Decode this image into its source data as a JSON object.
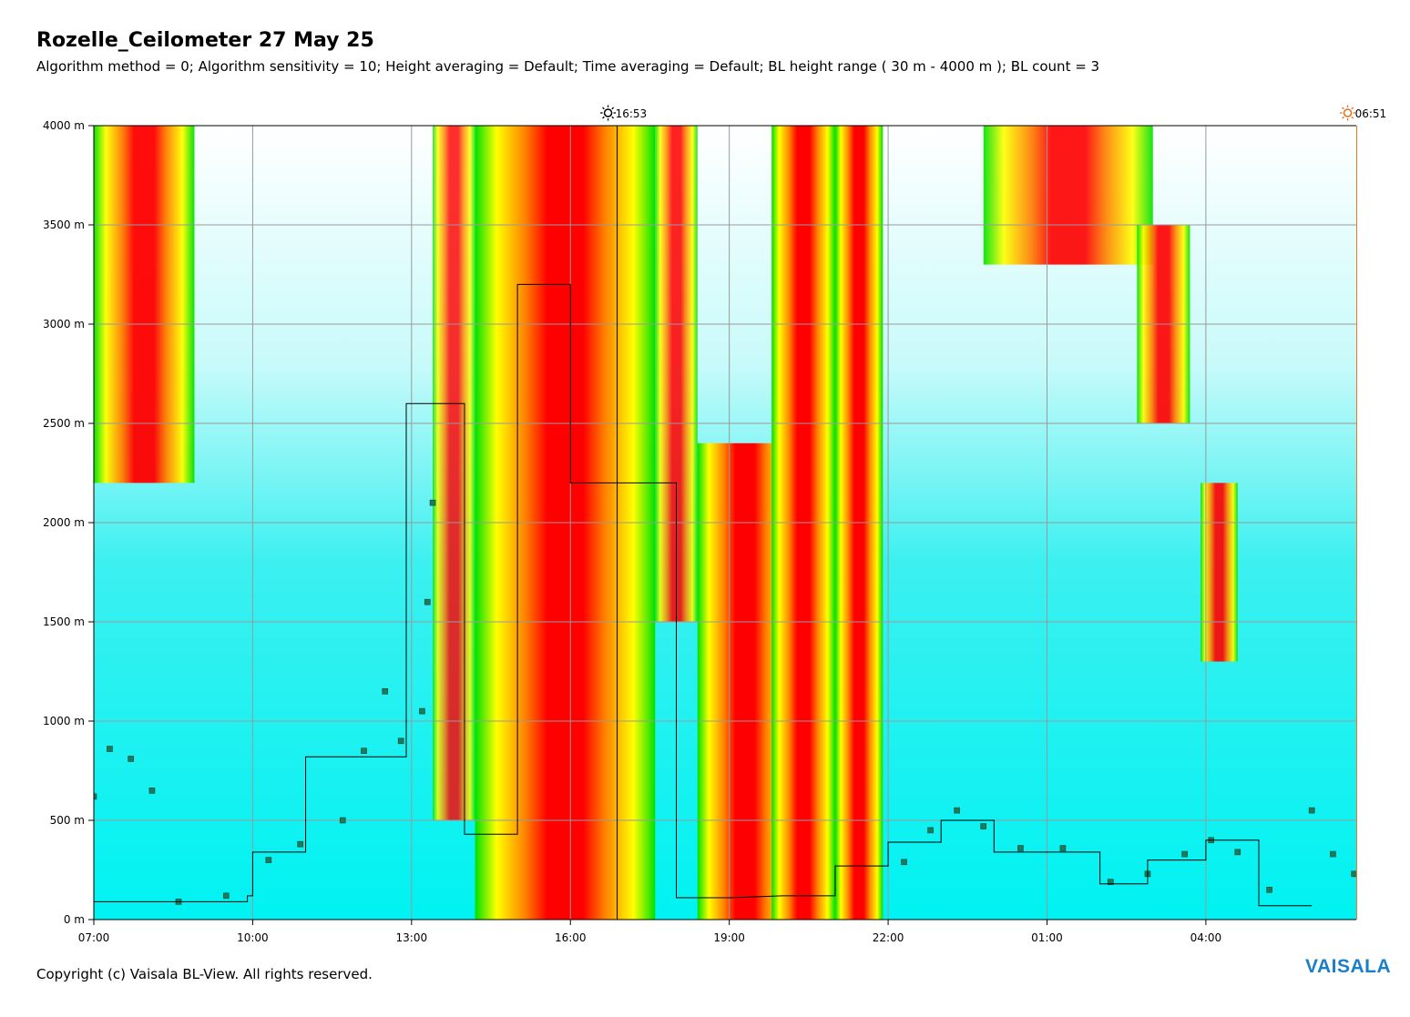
{
  "header": {
    "title": "Rozelle_Ceilometer 27 May 25",
    "subtitle": "Algorithm method = 0; Algorithm sensitivity = 10; Height averaging = Default; Time averaging = Default; BL height range ( 30 m - 4000 m ); BL count = 3"
  },
  "footer": {
    "copyright": "Copyright (c) Vaisala BL-View. All rights reserved.",
    "brand": "VAISALA"
  },
  "markers": {
    "sunrise_label": "16:53",
    "sunset_label": "06:51",
    "sunrise_color": "#000000",
    "sunset_color": "#e07020"
  },
  "chart_data": {
    "type": "heatmap",
    "title": "Rozelle_Ceilometer 27 May 25",
    "xlabel": "",
    "ylabel": "",
    "x_tick_labels": [
      "07:00",
      "10:00",
      "13:00",
      "16:00",
      "19:00",
      "22:00",
      "01:00",
      "04:00"
    ],
    "y_tick_labels": [
      "0 m",
      "500 m",
      "1000 m",
      "1500 m",
      "2000 m",
      "2500 m",
      "3000 m",
      "3500 m",
      "4000 m"
    ],
    "ylim": [
      0,
      4000
    ],
    "xlim_hours": [
      7.0,
      30.8
    ],
    "grid": true,
    "colors": {
      "background": "#00ffff",
      "low": "#00e6ff",
      "mid": "#00e000",
      "high": "#ffff00",
      "peak": "#ff0000",
      "marker_dots": "#1f6fb0",
      "bl_line": "#000000"
    },
    "sun_events": [
      {
        "label": "16:53",
        "hour": 16.883
      },
      {
        "label": "06:51",
        "hour": 30.85
      }
    ],
    "cloud_bands": [
      {
        "start": 7.0,
        "end": 8.9,
        "base": 2200,
        "top": 4000,
        "intensity": 0.9
      },
      {
        "start": 13.4,
        "end": 14.2,
        "base": 500,
        "top": 4000,
        "intensity": 0.6
      },
      {
        "start": 14.2,
        "end": 17.6,
        "base": 0,
        "top": 4000,
        "intensity": 1.0
      },
      {
        "start": 17.6,
        "end": 18.4,
        "base": 1500,
        "top": 4000,
        "intensity": 0.7
      },
      {
        "start": 18.4,
        "end": 20.2,
        "base": 0,
        "top": 2400,
        "intensity": 1.0
      },
      {
        "start": 19.8,
        "end": 21.0,
        "base": 0,
        "top": 4000,
        "intensity": 1.0
      },
      {
        "start": 21.0,
        "end": 21.9,
        "base": 0,
        "top": 4000,
        "intensity": 1.0
      },
      {
        "start": 23.8,
        "end": 27.0,
        "base": 3300,
        "top": 4000,
        "intensity": 0.8
      },
      {
        "start": 26.7,
        "end": 27.7,
        "base": 2500,
        "top": 3500,
        "intensity": 0.8
      },
      {
        "start": 27.9,
        "end": 28.6,
        "base": 1300,
        "top": 2200,
        "intensity": 0.8
      }
    ],
    "bl_height_steps": [
      {
        "start": 7.0,
        "end": 9.9,
        "height": 90
      },
      {
        "start": 9.9,
        "end": 10.0,
        "height": 120
      },
      {
        "start": 10.0,
        "end": 11.0,
        "height": 340
      },
      {
        "start": 11.0,
        "end": 12.9,
        "height": 820
      },
      {
        "start": 12.9,
        "end": 14.0,
        "height": 2600
      },
      {
        "start": 14.0,
        "end": 15.0,
        "height": 430
      },
      {
        "start": 15.0,
        "end": 16.0,
        "height": 3200
      },
      {
        "start": 16.0,
        "end": 17.0,
        "height": 2200
      },
      {
        "start": 17.0,
        "end": 18.0,
        "height": 2200
      },
      {
        "start": 18.0,
        "end": 19.0,
        "height": 110
      },
      {
        "start": 20.0,
        "end": 21.0,
        "height": 120
      },
      {
        "start": 21.0,
        "end": 22.0,
        "height": 270
      },
      {
        "start": 22.0,
        "end": 23.0,
        "height": 390
      },
      {
        "start": 23.0,
        "end": 24.0,
        "height": 500
      },
      {
        "start": 24.0,
        "end": 26.0,
        "height": 340
      },
      {
        "start": 26.0,
        "end": 26.9,
        "height": 180
      },
      {
        "start": 26.9,
        "end": 28.0,
        "height": 300
      },
      {
        "start": 28.0,
        "end": 29.0,
        "height": 400
      },
      {
        "start": 29.0,
        "end": 30.0,
        "height": 70
      }
    ],
    "aerosol_layer_points": [
      {
        "hour": 7.0,
        "height": 620
      },
      {
        "hour": 7.3,
        "height": 860
      },
      {
        "hour": 7.7,
        "height": 810
      },
      {
        "hour": 8.1,
        "height": 650
      },
      {
        "hour": 8.6,
        "height": 90
      },
      {
        "hour": 9.5,
        "height": 120
      },
      {
        "hour": 10.3,
        "height": 300
      },
      {
        "hour": 10.9,
        "height": 380
      },
      {
        "hour": 11.7,
        "height": 500
      },
      {
        "hour": 12.1,
        "height": 850
      },
      {
        "hour": 12.5,
        "height": 1150
      },
      {
        "hour": 12.8,
        "height": 900
      },
      {
        "hour": 13.2,
        "height": 1050
      },
      {
        "hour": 13.3,
        "height": 1600
      },
      {
        "hour": 13.4,
        "height": 2100
      },
      {
        "hour": 22.3,
        "height": 290
      },
      {
        "hour": 22.8,
        "height": 450
      },
      {
        "hour": 23.3,
        "height": 550
      },
      {
        "hour": 23.8,
        "height": 470
      },
      {
        "hour": 24.5,
        "height": 360
      },
      {
        "hour": 25.3,
        "height": 360
      },
      {
        "hour": 26.2,
        "height": 190
      },
      {
        "hour": 26.9,
        "height": 230
      },
      {
        "hour": 27.6,
        "height": 330
      },
      {
        "hour": 28.1,
        "height": 400
      },
      {
        "hour": 28.6,
        "height": 340
      },
      {
        "hour": 29.2,
        "height": 150
      },
      {
        "hour": 30.0,
        "height": 550
      },
      {
        "hour": 30.4,
        "height": 330
      },
      {
        "hour": 30.8,
        "height": 230
      }
    ]
  }
}
